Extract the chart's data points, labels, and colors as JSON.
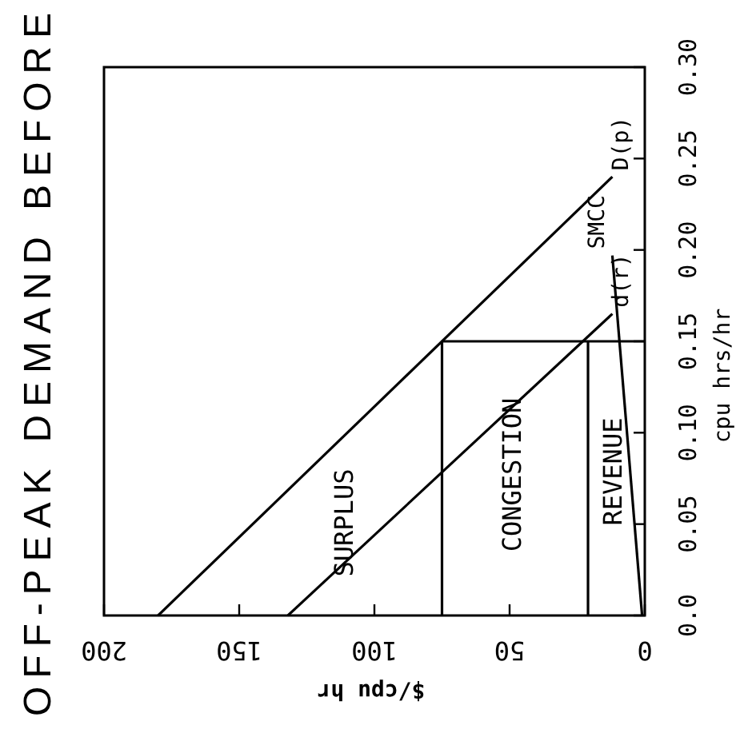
{
  "chart_data": {
    "type": "line",
    "title": "OFF-PEAK DEMAND BEFORE",
    "xlabel": "$/cpu hr",
    "ylabel": "cpu hrs/hr",
    "xlim": [
      200,
      0
    ],
    "ylim": [
      0,
      0.3
    ],
    "xticks": [
      200,
      150,
      100,
      50,
      0
    ],
    "yticks": [
      {
        "value": 0,
        "label": "0.0"
      },
      0.05,
      {
        "value": 0.1,
        "label": "0.10"
      },
      0.15,
      {
        "value": 0.2,
        "label": "0.20"
      },
      0.25,
      {
        "value": 0.3,
        "label": "0.30"
      }
    ],
    "grid": false,
    "series": [
      {
        "name": "D(p)",
        "color": "#000000",
        "x": [
          180,
          12
        ],
        "values": [
          0,
          0.24
        ]
      },
      {
        "name": "d(r)",
        "color": "#000000",
        "x": [
          132,
          12
        ],
        "values": [
          0,
          0.165
        ]
      },
      {
        "name": "SMCC",
        "color": "#000000",
        "x": [
          1,
          12
        ],
        "values": [
          0,
          0.197
        ]
      },
      {
        "color": "#000000",
        "x": [
          75,
          75,
          0
        ],
        "values": [
          0,
          0.15,
          0.15
        ]
      },
      {
        "color": "#000000",
        "x": [
          21,
          21
        ],
        "values": [
          0,
          0.15
        ]
      }
    ],
    "annotations": [
      "SURPLUS",
      "CONGESTION",
      "REVENUE"
    ]
  }
}
